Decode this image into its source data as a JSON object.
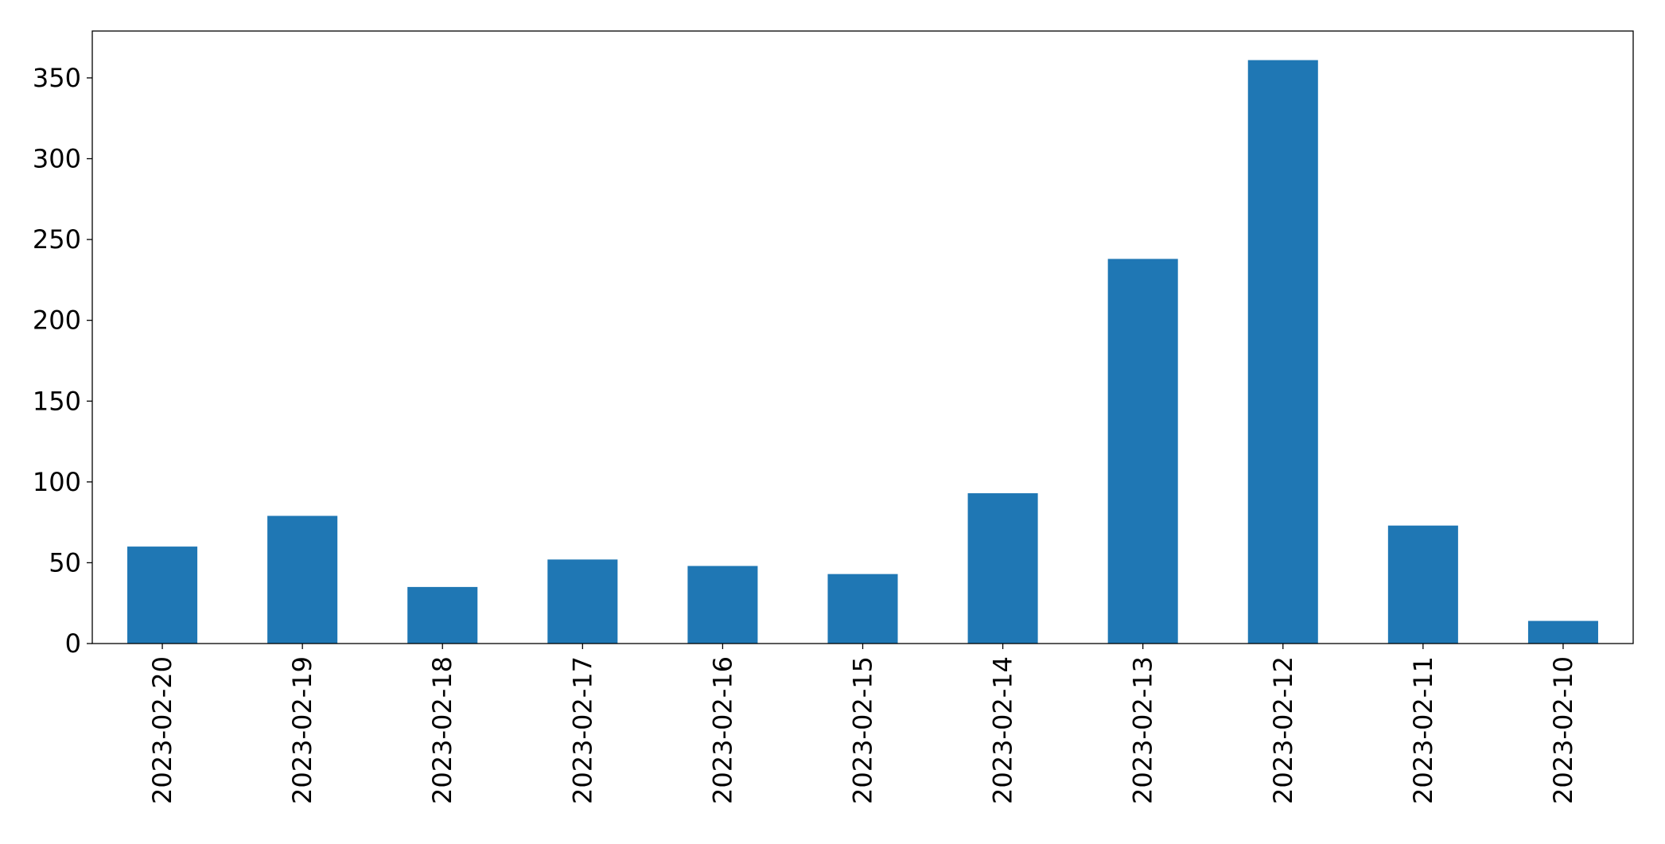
{
  "chart_data": {
    "type": "bar",
    "categories": [
      "2023-02-20",
      "2023-02-19",
      "2023-02-18",
      "2023-02-17",
      "2023-02-16",
      "2023-02-15",
      "2023-02-14",
      "2023-02-13",
      "2023-02-12",
      "2023-02-11",
      "2023-02-10"
    ],
    "values": [
      60,
      79,
      35,
      52,
      48,
      43,
      93,
      238,
      361,
      73,
      14
    ],
    "color": "#1f77b4",
    "ylim": [
      0,
      379
    ],
    "yticks": [
      0,
      50,
      100,
      150,
      200,
      250,
      300,
      350
    ],
    "grid": false
  }
}
